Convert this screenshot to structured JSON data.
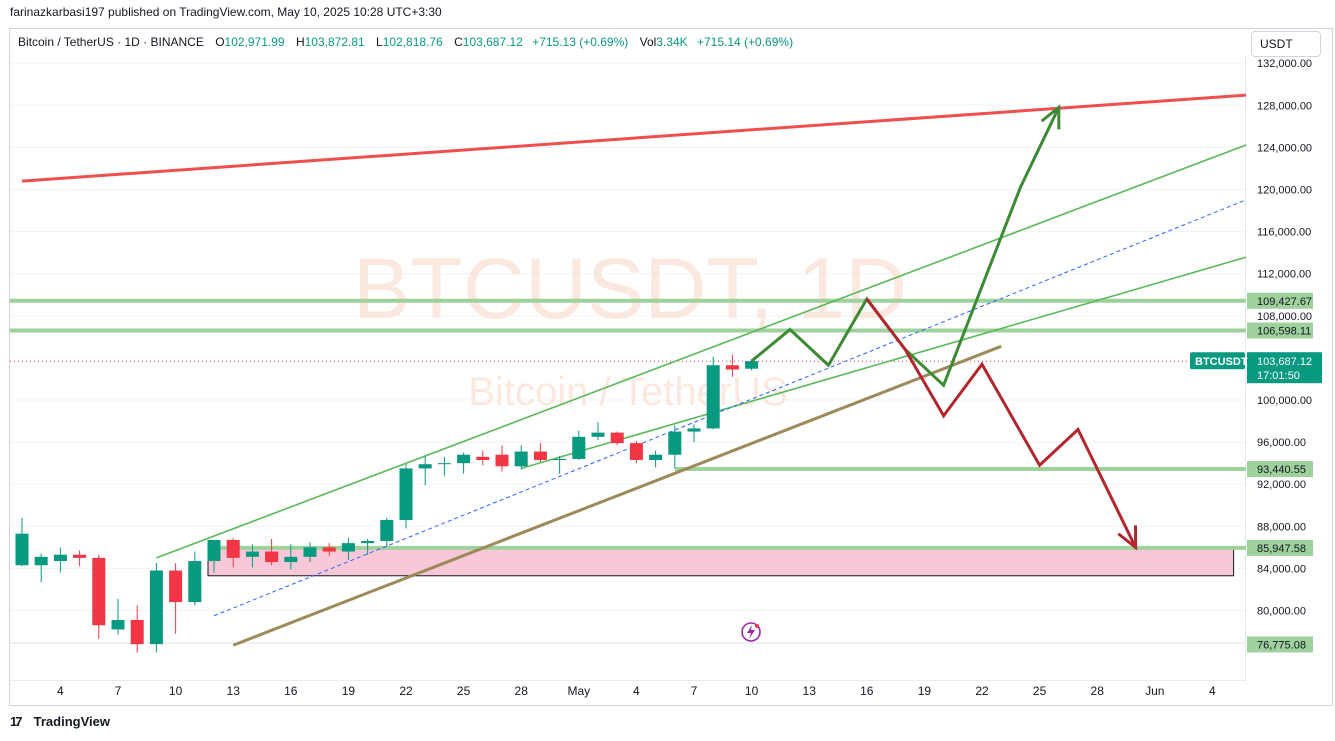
{
  "header": {
    "published_line": "farinazkarbasi197 published on TradingView.com, May 10, 2025 10:28 UTC+3:30"
  },
  "legend": {
    "symbol": "Bitcoin / TetherUS · 1D · BINANCE",
    "o_label": "O",
    "o_value": "102,971.99",
    "h_label": "H",
    "h_value": "103,872.81",
    "l_label": "L",
    "l_value": "102,818.76",
    "c_label": "C",
    "c_value": "103,687.12",
    "change": "+715.13 (+0.69%)",
    "vol_label": "Vol",
    "vol_value": "3.34K",
    "vol_change": "+715.14 (+0.69%)"
  },
  "currency_button": "USDT",
  "watermark": {
    "main": "BTCUSDT, 1D",
    "sub": "Bitcoin / TetherUS"
  },
  "price_tag": {
    "symbol": "BTCUSDT",
    "price": "103,687.12",
    "countdown": "17:01:50"
  },
  "footer": {
    "brand": "TradingView",
    "logo": "17"
  },
  "colors": {
    "up": "#089981",
    "down": "#f23645",
    "level": "#9ed19b",
    "channel": "#5cb85c",
    "resistance": "#ef4f4f",
    "support": "#9c8a5b",
    "bull_path": "#3c8a35",
    "bear_path": "#b3262e",
    "zone": "#f8c8d8",
    "midline": "#2962ff"
  },
  "chart_data": {
    "type": "candlestick",
    "ylim": [
      76000,
      134000
    ],
    "y_ticks": [
      "132,000.00",
      "128,000.00",
      "124,000.00",
      "120,000.00",
      "116,000.00",
      "112,000.00",
      "108,000.00",
      "100,000.00",
      "96,000.00",
      "92,000.00",
      "88,000.00",
      "84,000.00",
      "80,000.00"
    ],
    "x_ticks": [
      "4",
      "7",
      "10",
      "13",
      "16",
      "19",
      "22",
      "25",
      "28",
      "May",
      "4",
      "7",
      "10",
      "13",
      "16",
      "19",
      "22",
      "25",
      "28",
      "Jun",
      "4"
    ],
    "candles": [
      {
        "o": 84300,
        "h": 88800,
        "l": 84200,
        "c": 87300
      },
      {
        "o": 84300,
        "h": 85400,
        "l": 82700,
        "c": 85100
      },
      {
        "o": 84700,
        "h": 86000,
        "l": 83600,
        "c": 85300
      },
      {
        "o": 85300,
        "h": 85700,
        "l": 84200,
        "c": 85000
      },
      {
        "o": 85000,
        "h": 85300,
        "l": 77300,
        "c": 78600
      },
      {
        "o": 78200,
        "h": 81100,
        "l": 77700,
        "c": 79100
      },
      {
        "o": 79100,
        "h": 80500,
        "l": 76000,
        "c": 76800
      },
      {
        "o": 76800,
        "h": 84500,
        "l": 76000,
        "c": 83800
      },
      {
        "o": 83800,
        "h": 84500,
        "l": 77800,
        "c": 80800
      },
      {
        "o": 80800,
        "h": 85600,
        "l": 80500,
        "c": 84700
      },
      {
        "o": 84700,
        "h": 86700,
        "l": 83600,
        "c": 86700
      },
      {
        "o": 86700,
        "h": 86900,
        "l": 84100,
        "c": 85000
      },
      {
        "o": 85100,
        "h": 86300,
        "l": 84100,
        "c": 85600
      },
      {
        "o": 85600,
        "h": 86800,
        "l": 84300,
        "c": 84600
      },
      {
        "o": 84600,
        "h": 86300,
        "l": 83900,
        "c": 85100
      },
      {
        "o": 85100,
        "h": 86500,
        "l": 84600,
        "c": 86000
      },
      {
        "o": 86000,
        "h": 86400,
        "l": 85200,
        "c": 85600
      },
      {
        "o": 85600,
        "h": 86900,
        "l": 84800,
        "c": 86400
      },
      {
        "o": 86400,
        "h": 86800,
        "l": 85300,
        "c": 86600
      },
      {
        "o": 86600,
        "h": 88800,
        "l": 86100,
        "c": 88600
      },
      {
        "o": 88600,
        "h": 93900,
        "l": 87800,
        "c": 93500
      },
      {
        "o": 93500,
        "h": 94700,
        "l": 91900,
        "c": 93900
      },
      {
        "o": 93900,
        "h": 94600,
        "l": 92800,
        "c": 94000
      },
      {
        "o": 94000,
        "h": 95000,
        "l": 93000,
        "c": 94800
      },
      {
        "o": 94600,
        "h": 95200,
        "l": 93800,
        "c": 94300
      },
      {
        "o": 94800,
        "h": 95700,
        "l": 93200,
        "c": 93700
      },
      {
        "o": 93700,
        "h": 95700,
        "l": 93400,
        "c": 95100
      },
      {
        "o": 95100,
        "h": 95900,
        "l": 94100,
        "c": 94300
      },
      {
        "o": 94300,
        "h": 94700,
        "l": 93000,
        "c": 94400
      },
      {
        "o": 94400,
        "h": 97100,
        "l": 94300,
        "c": 96500
      },
      {
        "o": 96500,
        "h": 97900,
        "l": 96200,
        "c": 96900
      },
      {
        "o": 96900,
        "h": 97000,
        "l": 95700,
        "c": 95900
      },
      {
        "o": 95900,
        "h": 96100,
        "l": 94000,
        "c": 94300
      },
      {
        "o": 94300,
        "h": 95200,
        "l": 93600,
        "c": 94800
      },
      {
        "o": 94800,
        "h": 97600,
        "l": 93500,
        "c": 97000
      },
      {
        "o": 97000,
        "h": 97700,
        "l": 96000,
        "c": 97300
      },
      {
        "o": 97300,
        "h": 104100,
        "l": 97200,
        "c": 103300
      },
      {
        "o": 103300,
        "h": 104300,
        "l": 102200,
        "c": 102900
      },
      {
        "o": 102972,
        "h": 103873,
        "l": 102819,
        "c": 103687
      }
    ],
    "price_levels": [
      "109,427.67",
      "106,598.11",
      "93,440.55",
      "85,947.58",
      "76,775.08"
    ],
    "resistance_line": {
      "from": [
        0,
        120800
      ],
      "to": [
        64,
        129000
      ]
    },
    "channel_upper": {
      "from": [
        7,
        85000
      ],
      "to": [
        64,
        124400
      ]
    },
    "channel_lower": {
      "from": [
        26,
        93500
      ],
      "to": [
        64,
        113700
      ]
    },
    "midline": {
      "from": [
        10,
        79500
      ],
      "to": [
        64,
        119200
      ]
    },
    "support_line": {
      "from": [
        11,
        76700
      ],
      "to": [
        51,
        105100
      ]
    },
    "demand_zone": {
      "from_index": 10,
      "to_index": 63,
      "top": 85947.58,
      "bottom": 83300
    },
    "bullish_path": [
      [
        38,
        103700
      ],
      [
        40,
        106700
      ],
      [
        42,
        103300
      ],
      [
        44,
        109600
      ],
      [
        46,
        104800
      ],
      [
        48,
        101400
      ],
      [
        52,
        120200
      ],
      [
        54,
        127800
      ]
    ],
    "bearish_path": [
      [
        44,
        109600
      ],
      [
        46,
        104800
      ],
      [
        48,
        98500
      ],
      [
        50,
        103400
      ],
      [
        53,
        93800
      ],
      [
        55,
        97200
      ],
      [
        58,
        86000
      ]
    ]
  }
}
